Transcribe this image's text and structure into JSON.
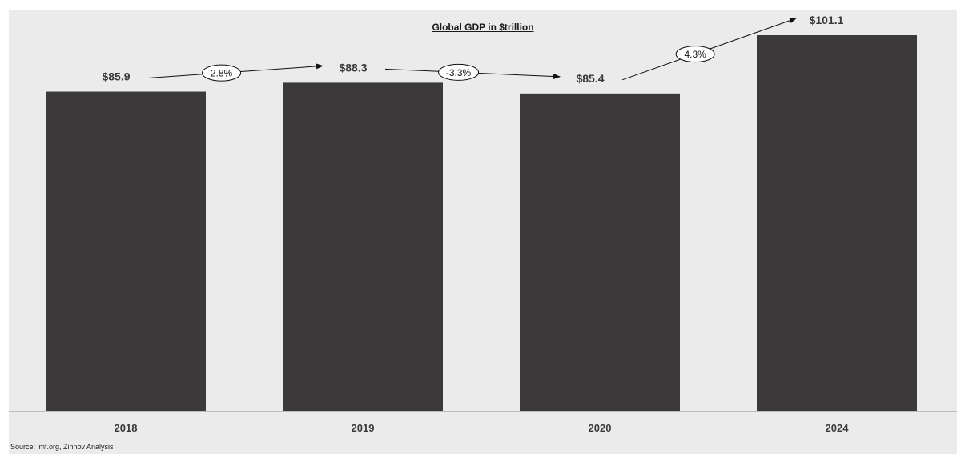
{
  "chart_data": {
    "type": "bar",
    "title": "Global GDP in $trillion",
    "categories": [
      "2018",
      "2019",
      "2020",
      "2024"
    ],
    "values": [
      85.9,
      88.3,
      85.4,
      101.1
    ],
    "value_labels": [
      "$85.9",
      "$88.3",
      "$85.4",
      "$101.1"
    ],
    "growth_annotations": [
      {
        "from": "2018",
        "to": "2019",
        "label": "2.8%"
      },
      {
        "from": "2019",
        "to": "2020",
        "label": "-3.3%"
      },
      {
        "from": "2020",
        "to": "2024",
        "label": "4.3%"
      }
    ],
    "ylim": [
      0,
      108
    ],
    "grid": false,
    "legend": "none",
    "xlabel": "",
    "ylabel": "",
    "bar_color": "#3b393a",
    "background_color": "#ebebeb"
  },
  "source": "Source: imf.org, Zinnov Analysis"
}
